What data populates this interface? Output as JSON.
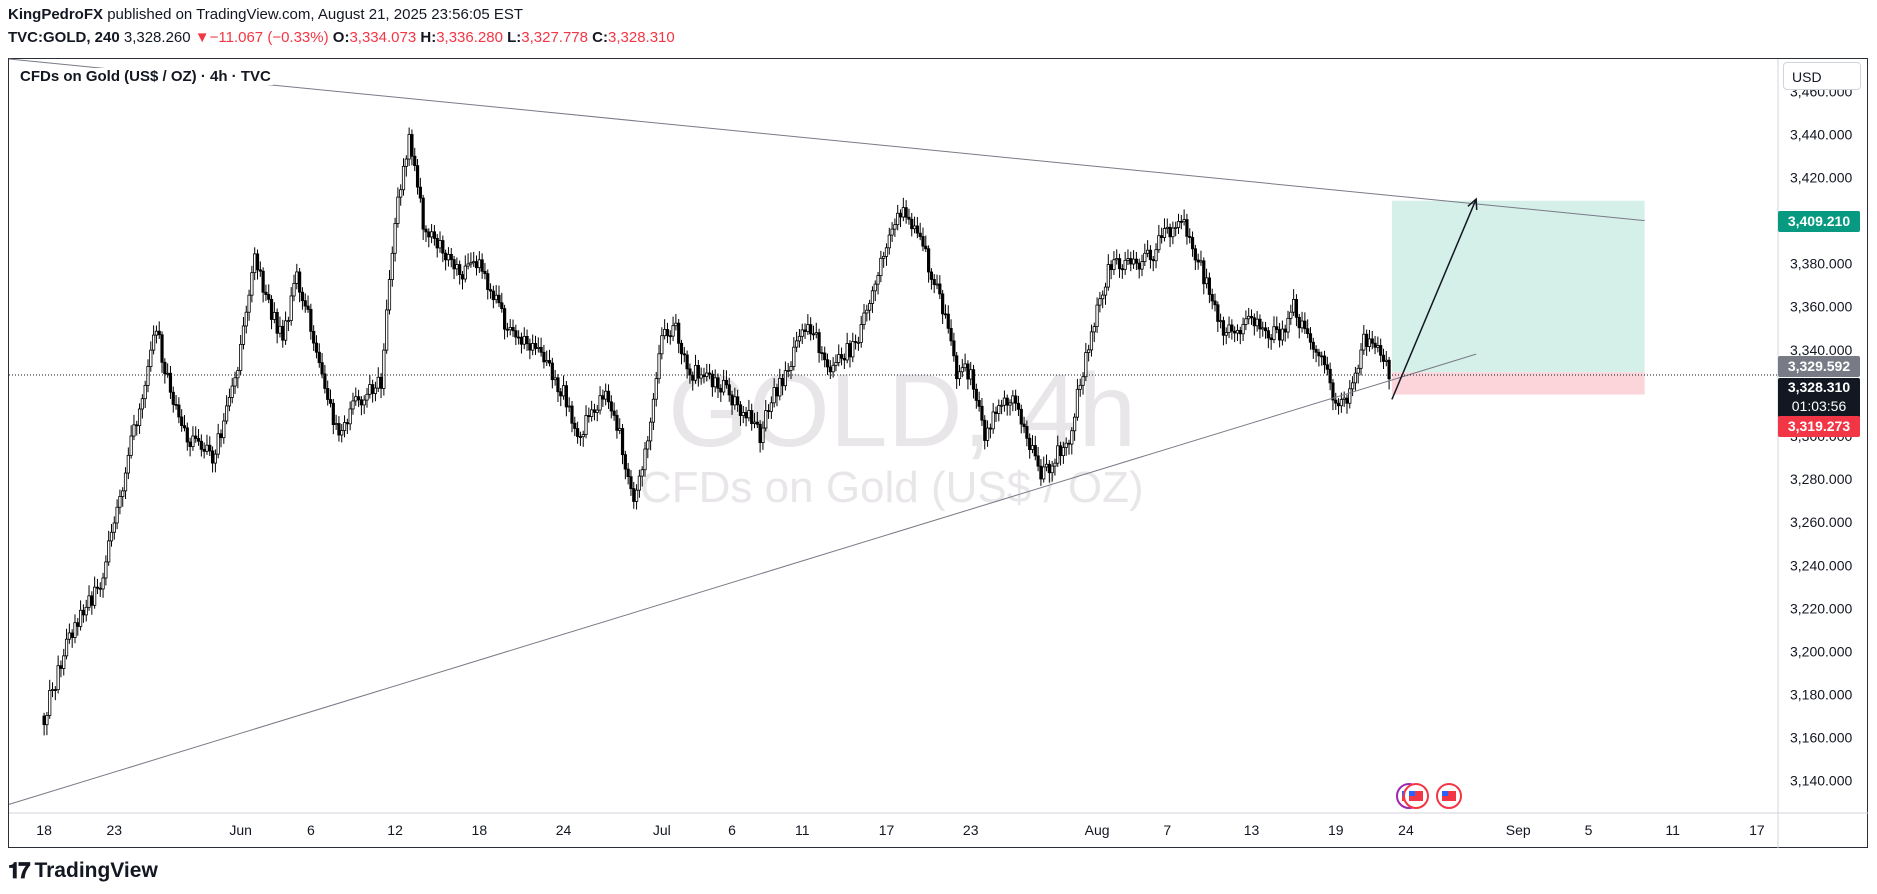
{
  "header": {
    "publisher": "KingPedroFX",
    "published_text": "published on TradingView.com, August 21, 2025 23:56:05 EST",
    "symbol": "TVC:GOLD, 240",
    "last": "3,328.260",
    "change": "−11.067 (−0.33%)",
    "o_label": "O:",
    "open": "3,334.073",
    "h_label": "H:",
    "high": "3,336.280",
    "l_label": "L:",
    "low": "3,327.778",
    "c_label": "C:",
    "close": "3,328.310"
  },
  "chart_title": "CFDs on Gold (US$ / OZ) · 4h · TVC",
  "currency": "USD",
  "watermark": {
    "symbol": "GOLD, 4h",
    "description": "CFDs on Gold (US$ / OZ)"
  },
  "footer": {
    "brand": "TradingView"
  },
  "colors": {
    "up": "#089981",
    "down": "#f23645",
    "candle": "#000000",
    "target_zone": "#d5efe9",
    "stop_zone": "#fbd5d9",
    "trendline": "#787b86"
  },
  "chart_data": {
    "type": "candlestick",
    "title": "CFDs on Gold (US$ / OZ) · 4h · TVC",
    "ylim": [
      3125,
      3475
    ],
    "y_ticks": [
      "3,140.000",
      "3,160.000",
      "3,180.000",
      "3,200.000",
      "3,220.000",
      "3,240.000",
      "3,260.000",
      "3,280.000",
      "3,300.000",
      "3,320.000",
      "3,340.000",
      "3,360.000",
      "3,380.000",
      "3,400.000",
      "3,420.000",
      "3,440.000",
      "3,460.000"
    ],
    "y_tick_values": [
      3140,
      3160,
      3180,
      3200,
      3220,
      3240,
      3260,
      3280,
      3300,
      3320,
      3340,
      3360,
      3380,
      3400,
      3420,
      3440,
      3460
    ],
    "x_ticks": [
      "18",
      "23",
      "Jun",
      "6",
      "12",
      "18",
      "24",
      "Jul",
      "6",
      "11",
      "17",
      "23",
      "Aug",
      "7",
      "13",
      "19",
      "24",
      "Sep",
      "5",
      "11",
      "17"
    ],
    "x_tick_days": [
      0,
      5,
      14,
      19,
      25,
      31,
      37,
      44,
      49,
      54,
      60,
      66,
      75,
      80,
      86,
      92,
      97,
      105,
      110,
      116,
      122
    ],
    "x_range_days": [
      -2.5,
      123.5
    ],
    "price_path": [
      [
        0,
        3170
      ],
      [
        2,
        3210
      ],
      [
        4,
        3230
      ],
      [
        6,
        3290
      ],
      [
        8,
        3350
      ],
      [
        9,
        3320
      ],
      [
        10,
        3300
      ],
      [
        12,
        3290
      ],
      [
        13,
        3310
      ],
      [
        14,
        3340
      ],
      [
        15,
        3385
      ],
      [
        16,
        3360
      ],
      [
        17,
        3345
      ],
      [
        18,
        3375
      ],
      [
        19,
        3350
      ],
      [
        20,
        3320
      ],
      [
        21,
        3300
      ],
      [
        22,
        3315
      ],
      [
        24,
        3325
      ],
      [
        25,
        3400
      ],
      [
        26,
        3440
      ],
      [
        27,
        3400
      ],
      [
        28,
        3390
      ],
      [
        30,
        3375
      ],
      [
        31,
        3380
      ],
      [
        33,
        3350
      ],
      [
        35,
        3340
      ],
      [
        37,
        3320
      ],
      [
        38,
        3300
      ],
      [
        40,
        3320
      ],
      [
        41,
        3300
      ],
      [
        42,
        3270
      ],
      [
        43,
        3300
      ],
      [
        44,
        3345
      ],
      [
        45,
        3350
      ],
      [
        46,
        3330
      ],
      [
        48,
        3325
      ],
      [
        50,
        3310
      ],
      [
        51,
        3300
      ],
      [
        52,
        3320
      ],
      [
        53,
        3330
      ],
      [
        54,
        3350
      ],
      [
        55,
        3345
      ],
      [
        56,
        3330
      ],
      [
        58,
        3345
      ],
      [
        59,
        3370
      ],
      [
        60,
        3390
      ],
      [
        61,
        3405
      ],
      [
        62,
        3395
      ],
      [
        63,
        3380
      ],
      [
        64,
        3360
      ],
      [
        65,
        3330
      ],
      [
        66,
        3330
      ],
      [
        67,
        3300
      ],
      [
        68,
        3315
      ],
      [
        69,
        3320
      ],
      [
        70,
        3300
      ],
      [
        71,
        3280
      ],
      [
        72,
        3290
      ],
      [
        73,
        3300
      ],
      [
        74,
        3330
      ],
      [
        75,
        3360
      ],
      [
        76,
        3380
      ],
      [
        78,
        3380
      ],
      [
        79,
        3385
      ],
      [
        80,
        3395
      ],
      [
        81,
        3400
      ],
      [
        82,
        3385
      ],
      [
        84,
        3350
      ],
      [
        85,
        3350
      ],
      [
        86,
        3355
      ],
      [
        87,
        3350
      ],
      [
        88,
        3345
      ],
      [
        89,
        3360
      ],
      [
        90,
        3345
      ],
      [
        91,
        3340
      ],
      [
        92,
        3315
      ],
      [
        93,
        3320
      ],
      [
        94,
        3345
      ],
      [
        95,
        3340
      ],
      [
        96,
        3328
      ]
    ],
    "trade": {
      "entry": 3329.592,
      "target": 3409.21,
      "stop": 3319.273,
      "last": 3328.31,
      "countdown": "01:03:56",
      "entry_label": "3,329.592",
      "target_label": "3,409.210",
      "stop_label": "3,319.273",
      "last_label": "3,328.310",
      "start_day": 96,
      "end_day": 114
    },
    "trendlines": [
      {
        "name": "upper-trendline",
        "from": [
          -2.5,
          3475
        ],
        "to": [
          114,
          3400
        ]
      },
      {
        "name": "lower-trendline",
        "from": [
          -2.5,
          3129
        ],
        "to": [
          102,
          3338
        ]
      }
    ],
    "arrow": {
      "from": [
        96,
        3317
      ],
      "to": [
        102,
        3410
      ]
    },
    "grid": false
  }
}
